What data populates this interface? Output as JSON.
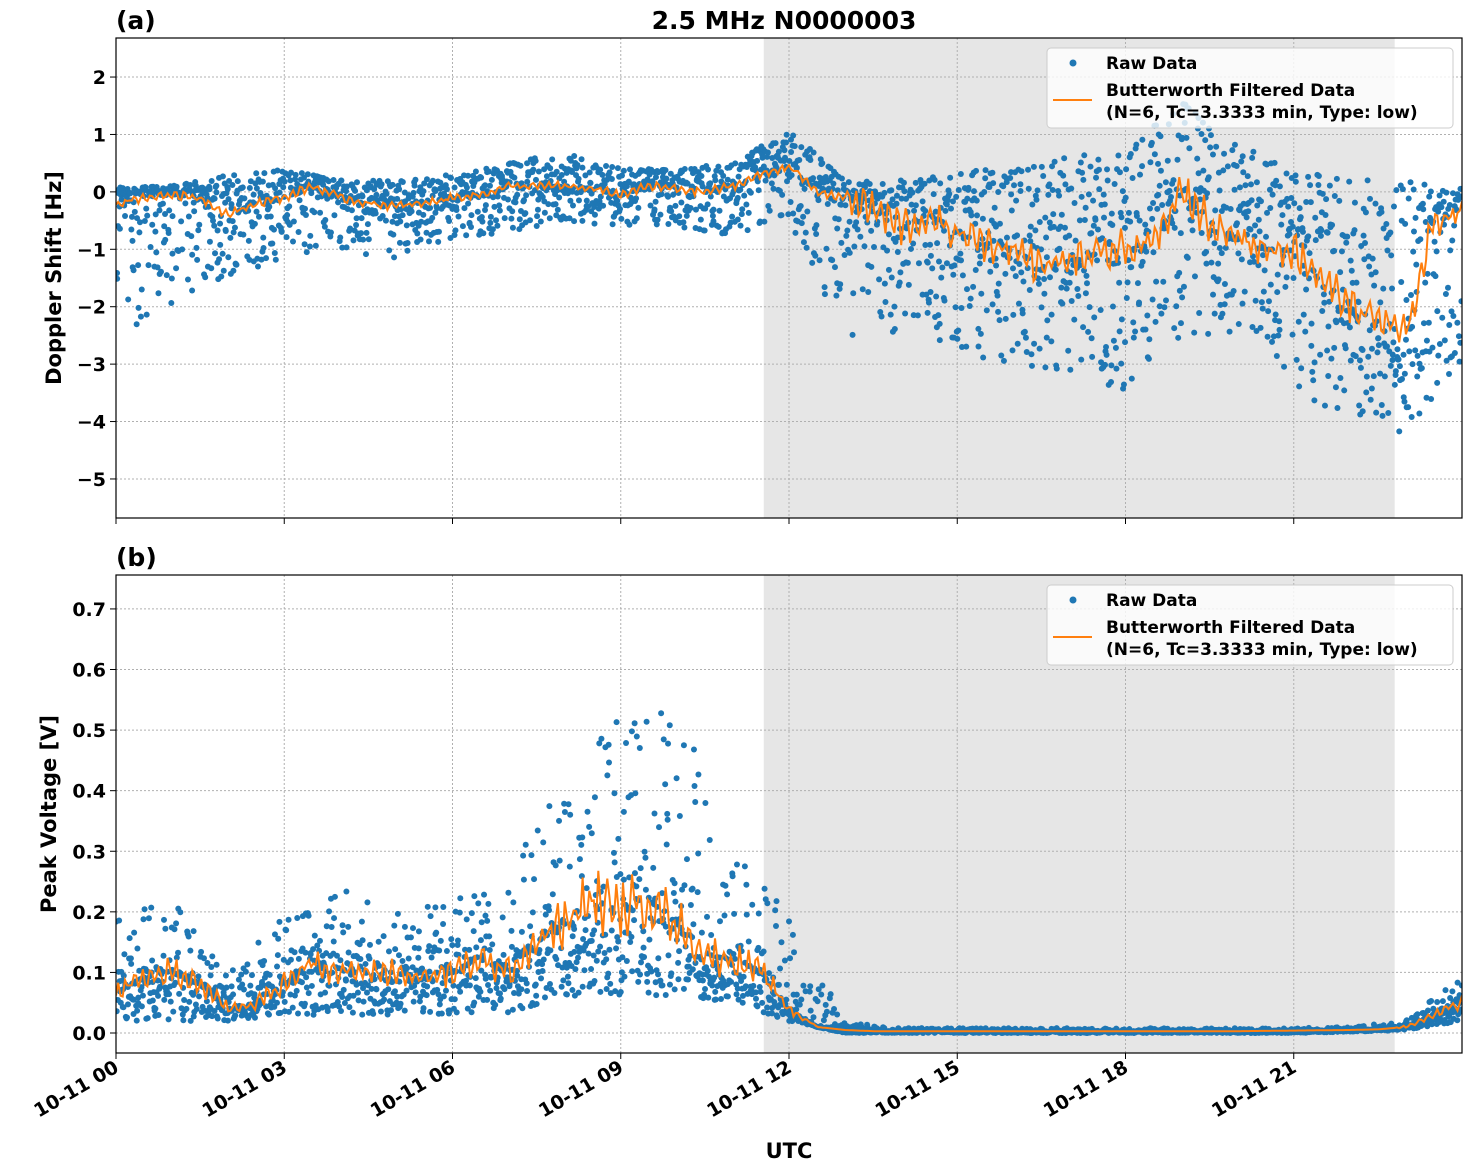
{
  "chart_data": [
    {
      "type": "scatter+line",
      "panel_label": "(a)",
      "title": "2.5 MHz N0000003",
      "xlabel": "",
      "ylabel": "Doppler Shift [Hz]",
      "xlim_hours": [
        0,
        24
      ],
      "ylim": [
        -5.68,
        2.68
      ],
      "yticks": [
        2,
        1,
        0,
        -1,
        -2,
        -3,
        -4,
        -5
      ],
      "ytick_labels": [
        "2",
        "1",
        "0",
        "−1",
        "−2",
        "−3",
        "−4",
        "−5"
      ],
      "grid": true,
      "shaded_interval_hours": [
        11.55,
        22.8
      ],
      "legend": {
        "placement": "upper-right",
        "entries": [
          "Raw Data",
          "Butterworth Filtered Data",
          "(N=6, Tc=3.3333 min, Type: low)"
        ]
      },
      "series": [
        {
          "name": "Raw Data",
          "kind": "scatter",
          "color": "#1f77b4",
          "hourly_envelope_hours": [
            0,
            1,
            2,
            3,
            4,
            5,
            6,
            7,
            8,
            9,
            10,
            11,
            12,
            13,
            14,
            15,
            16,
            17,
            18,
            19,
            20,
            21,
            22,
            23,
            24
          ],
          "low": [
            -2.5,
            -2,
            -1.5,
            -1.2,
            -1,
            -1.2,
            -0.8,
            -0.7,
            -0.5,
            -0.6,
            -0.6,
            -0.8,
            -0.5,
            -2.5,
            -2.5,
            -2.8,
            -3,
            -3.2,
            -3.5,
            -2.5,
            -2.5,
            -3.5,
            -4,
            -4.2,
            -3
          ],
          "high": [
            0.1,
            0.1,
            0.3,
            0.4,
            0.2,
            0.2,
            0.3,
            0.5,
            0.7,
            0.4,
            0.4,
            0.5,
            1.1,
            0.2,
            0.2,
            0.3,
            0.5,
            0.6,
            0.8,
            1.6,
            0.8,
            0.5,
            0.2,
            0.2,
            0.1
          ]
        },
        {
          "name": "Butterworth Filtered Data",
          "kind": "line",
          "color": "#ff7f0e",
          "x_hours": [
            0,
            0.5,
            1,
            1.5,
            2,
            2.5,
            3,
            3.5,
            4,
            4.5,
            5,
            5.5,
            6,
            6.5,
            7,
            7.5,
            8,
            8.5,
            9,
            9.5,
            10,
            10.5,
            11,
            11.5,
            12,
            12.5,
            13,
            13.5,
            14,
            14.5,
            15,
            15.5,
            16,
            16.5,
            17,
            17.5,
            18,
            18.5,
            19,
            19.5,
            20,
            20.5,
            21,
            21.5,
            22,
            22.5,
            23,
            23.5,
            24
          ],
          "y": [
            -0.2,
            -0.1,
            -0.05,
            -0.1,
            -0.4,
            -0.2,
            -0.1,
            0.1,
            -0.1,
            -0.2,
            -0.25,
            -0.2,
            -0.1,
            -0.05,
            0.1,
            0.1,
            0.1,
            0.05,
            -0.05,
            0.1,
            0.05,
            0.0,
            0.1,
            0.3,
            0.45,
            0.0,
            -0.1,
            -0.3,
            -0.6,
            -0.5,
            -0.7,
            -0.9,
            -1.0,
            -1.3,
            -1.2,
            -1.1,
            -1.0,
            -0.9,
            0.0,
            -0.5,
            -0.8,
            -1.0,
            -1.0,
            -1.5,
            -2.0,
            -2.2,
            -2.5,
            -0.5,
            -0.3
          ]
        }
      ]
    },
    {
      "type": "scatter+line",
      "panel_label": "(b)",
      "xlabel": "UTC",
      "ylabel": "Peak Voltage [V]",
      "xlim_hours": [
        0,
        24
      ],
      "ylim": [
        -0.033,
        0.756
      ],
      "yticks": [
        0.0,
        0.1,
        0.2,
        0.3,
        0.4,
        0.5,
        0.6,
        0.7
      ],
      "ytick_labels": [
        "0.0",
        "0.1",
        "0.2",
        "0.3",
        "0.4",
        "0.5",
        "0.6",
        "0.7"
      ],
      "xticks_hours": [
        0,
        3,
        6,
        9,
        12,
        15,
        18,
        21
      ],
      "xtick_labels": [
        "10-11 00",
        "10-11 03",
        "10-11 06",
        "10-11 09",
        "10-11 12",
        "10-11 15",
        "10-11 18",
        "10-11 21"
      ],
      "grid": true,
      "shaded_interval_hours": [
        11.55,
        22.8
      ],
      "legend": {
        "placement": "upper-right",
        "entries": [
          "Raw Data",
          "Butterworth Filtered Data",
          "(N=6, Tc=3.3333 min, Type: low)"
        ]
      },
      "series": [
        {
          "name": "Raw Data",
          "kind": "scatter",
          "color": "#1f77b4",
          "hourly_envelope_hours": [
            0,
            1,
            2,
            3,
            4,
            5,
            6,
            7,
            8,
            9,
            10,
            11,
            12,
            13,
            14,
            15,
            16,
            17,
            18,
            19,
            20,
            21,
            22,
            23,
            24
          ],
          "low": [
            0.02,
            0.02,
            0.02,
            0.03,
            0.03,
            0.03,
            0.03,
            0.03,
            0.06,
            0.06,
            0.06,
            0.05,
            0.02,
            0,
            0,
            0,
            0,
            0,
            0,
            0,
            0,
            0,
            0.002,
            0.005,
            0.02
          ],
          "high": [
            0.2,
            0.22,
            0.1,
            0.2,
            0.25,
            0.25,
            0.22,
            0.25,
            0.45,
            0.6,
            0.55,
            0.3,
            0.2,
            0.02,
            0.008,
            0.008,
            0.008,
            0.008,
            0.008,
            0.008,
            0.008,
            0.008,
            0.01,
            0.02,
            0.1
          ]
        },
        {
          "name": "Butterworth Filtered Data",
          "kind": "line",
          "color": "#ff7f0e",
          "x_hours": [
            0,
            0.5,
            1,
            1.5,
            2,
            2.5,
            3,
            3.5,
            4,
            4.5,
            5,
            5.5,
            6,
            6.5,
            7,
            7.5,
            8,
            8.5,
            9,
            9.5,
            10,
            10.5,
            11,
            11.5,
            12,
            12.5,
            13,
            13.5,
            14,
            15,
            16,
            17,
            18,
            19,
            20,
            21,
            22,
            22.5,
            23,
            23.5,
            24
          ],
          "y": [
            0.07,
            0.09,
            0.1,
            0.08,
            0.04,
            0.05,
            0.08,
            0.12,
            0.1,
            0.1,
            0.1,
            0.09,
            0.1,
            0.12,
            0.1,
            0.15,
            0.18,
            0.22,
            0.2,
            0.22,
            0.18,
            0.13,
            0.12,
            0.1,
            0.04,
            0.01,
            0.005,
            0.003,
            0.003,
            0.003,
            0.003,
            0.003,
            0.003,
            0.003,
            0.003,
            0.004,
            0.005,
            0.006,
            0.01,
            0.03,
            0.05
          ]
        }
      ]
    }
  ]
}
